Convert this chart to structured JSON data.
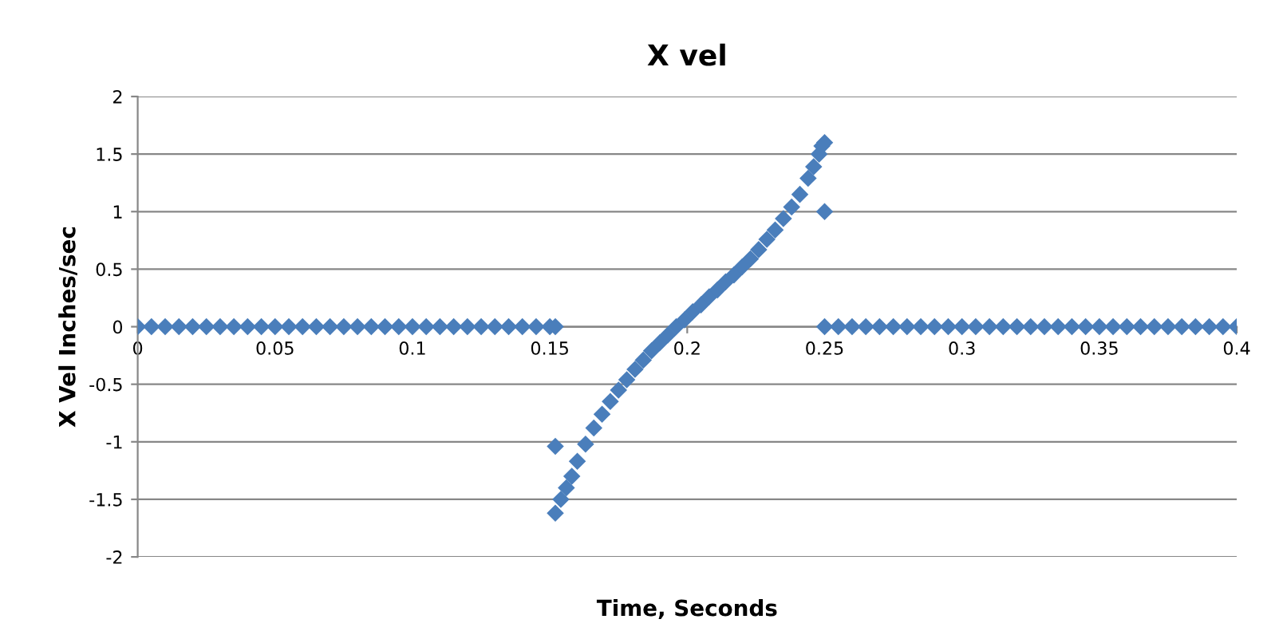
{
  "chart_data": {
    "type": "scatter",
    "title": "X vel",
    "xlabel": "Time, Seconds",
    "ylabel": "X Vel Inches/sec",
    "xlim": [
      0,
      0.4
    ],
    "xticks": [
      0,
      0.05,
      0.1,
      0.15,
      0.2,
      0.25,
      0.3,
      0.35,
      0.4
    ],
    "ylim": [
      -2,
      2
    ],
    "yticks": [
      -2,
      -1.5,
      -1,
      -0.5,
      0,
      0.5,
      1,
      1.5,
      2
    ],
    "grid": "y",
    "marker": "diamond",
    "series": [
      {
        "color": "#4a7ebb",
        "x": [
          0,
          0.005,
          0.01,
          0.015,
          0.02,
          0.025,
          0.03,
          0.035,
          0.04,
          0.045,
          0.05,
          0.055,
          0.06,
          0.065,
          0.07,
          0.075,
          0.08,
          0.085,
          0.09,
          0.095,
          0.1,
          0.105,
          0.11,
          0.115,
          0.12,
          0.125,
          0.13,
          0.135,
          0.14,
          0.145,
          0.15,
          0.152,
          0.152,
          0.152,
          0.154,
          0.156,
          0.158,
          0.16,
          0.163,
          0.166,
          0.169,
          0.172,
          0.175,
          0.178,
          0.181,
          0.184,
          0.187,
          0.19,
          0.193,
          0.196,
          0.199,
          0.202,
          0.205,
          0.208,
          0.211,
          0.214,
          0.217,
          0.22,
          0.223,
          0.226,
          0.229,
          0.232,
          0.235,
          0.238,
          0.241,
          0.244,
          0.246,
          0.248,
          0.249,
          0.25,
          0.25,
          0.25,
          0.255,
          0.26,
          0.265,
          0.27,
          0.275,
          0.28,
          0.285,
          0.29,
          0.295,
          0.3,
          0.305,
          0.31,
          0.315,
          0.32,
          0.325,
          0.33,
          0.335,
          0.34,
          0.345,
          0.35,
          0.355,
          0.36,
          0.365,
          0.37,
          0.375,
          0.38,
          0.385,
          0.39,
          0.395,
          0.4
        ],
        "values": [
          0,
          0,
          0,
          0,
          0,
          0,
          0,
          0,
          0,
          0,
          0,
          0,
          0,
          0,
          0,
          0,
          0,
          0,
          0,
          0,
          0,
          0,
          0,
          0,
          0,
          0,
          0,
          0,
          0,
          0,
          0,
          0,
          -1.04,
          -1.62,
          -1.5,
          -1.4,
          -1.3,
          -1.17,
          -1.02,
          -0.88,
          -0.76,
          -0.65,
          -0.55,
          -0.46,
          -0.37,
          -0.29,
          -0.21,
          -0.14,
          -0.07,
          0,
          0.06,
          0.13,
          0.19,
          0.26,
          0.32,
          0.39,
          0.45,
          0.52,
          0.59,
          0.67,
          0.76,
          0.84,
          0.94,
          1.04,
          1.15,
          1.29,
          1.39,
          1.5,
          1.57,
          1.6,
          1.0,
          0,
          0,
          0,
          0,
          0,
          0,
          0,
          0,
          0,
          0,
          0,
          0,
          0,
          0,
          0,
          0,
          0,
          0,
          0,
          0,
          0,
          0,
          0,
          0,
          0,
          0,
          0,
          0,
          0,
          0,
          0
        ]
      }
    ]
  }
}
